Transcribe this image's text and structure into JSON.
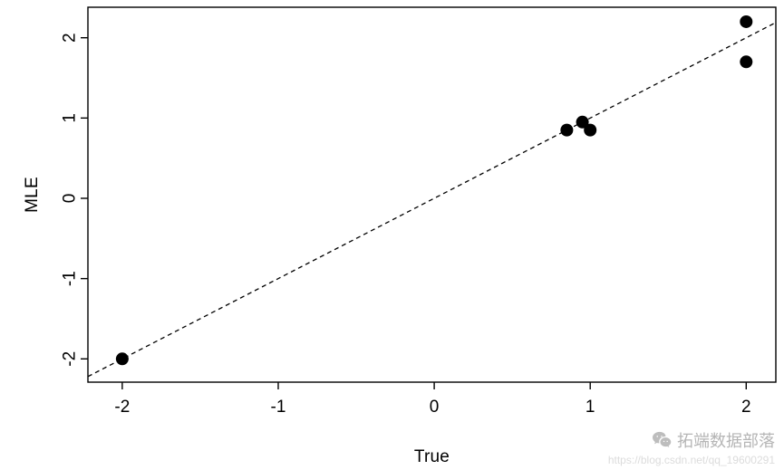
{
  "chart_data": {
    "type": "scatter",
    "title": "",
    "xlabel": "True",
    "ylabel": "MLE",
    "xlim": [
      -2.22,
      2.19
    ],
    "ylim": [
      -2.29,
      2.38
    ],
    "x_ticks": [
      -2,
      -1,
      0,
      1,
      2
    ],
    "y_ticks": [
      -2,
      -1,
      0,
      1,
      2
    ],
    "grid": false,
    "legend": null,
    "point_color": "#000000",
    "point_radius": 7,
    "points": [
      {
        "x": -2.0,
        "y": -2.0
      },
      {
        "x": 0.85,
        "y": 0.85
      },
      {
        "x": 0.95,
        "y": 0.95
      },
      {
        "x": 1.0,
        "y": 0.85
      },
      {
        "x": 2.0,
        "y": 2.2
      },
      {
        "x": 2.0,
        "y": 1.7
      }
    ],
    "reference_line": {
      "slope": 1,
      "intercept": 0,
      "style": "dashed",
      "from": {
        "x": -2.22,
        "y": -2.22
      },
      "to": {
        "x": 2.19,
        "y": 2.19
      }
    }
  },
  "watermark": {
    "brand": "拓端数据部落",
    "url": "https://blog.csdn.net/qq_19600291",
    "icon": "wechat-chat-bubbles"
  }
}
